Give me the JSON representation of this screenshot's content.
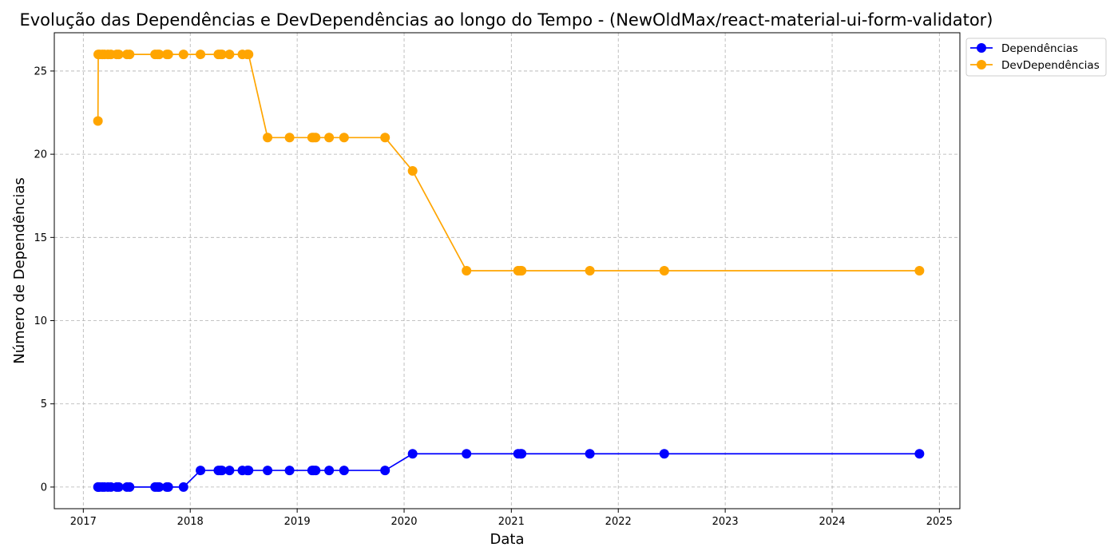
{
  "chart_data": {
    "type": "line",
    "title": "Evolução das Dependências e DevDependências ao longo do Tempo - (NewOldMax/react-material-ui-form-validator)",
    "xlabel": "Data",
    "ylabel": "Número de Dependências",
    "x_axis": {
      "scale": "date",
      "range": [
        "2016-09-24",
        "2025-03-12"
      ],
      "ticks": [
        "2017",
        "2018",
        "2019",
        "2020",
        "2021",
        "2022",
        "2023",
        "2024",
        "2025"
      ]
    },
    "y_axis": {
      "range": [
        -1.3,
        27.3
      ],
      "ticks": [
        "0",
        "5",
        "10",
        "15",
        "20",
        "25"
      ]
    },
    "grid": true,
    "grid_style": "dashed",
    "legend_position": "upper right outside",
    "x": [
      "2017-02-20",
      "2017-02-21",
      "2017-02-26",
      "2017-03-07",
      "2017-03-14",
      "2017-03-26",
      "2017-04-05",
      "2017-04-25",
      "2017-05-02",
      "2017-05-30",
      "2017-06-08",
      "2017-09-03",
      "2017-09-11",
      "2017-09-17",
      "2017-10-13",
      "2017-10-18",
      "2017-12-09",
      "2018-02-05",
      "2018-04-07",
      "2018-04-14",
      "2018-04-19",
      "2018-05-15",
      "2018-06-28",
      "2018-07-15",
      "2018-07-19",
      "2018-09-22",
      "2018-12-06",
      "2019-02-21",
      "2019-02-26",
      "2019-03-05",
      "2019-04-20",
      "2019-06-10",
      "2019-10-28",
      "2020-01-30",
      "2020-08-01",
      "2021-01-24",
      "2021-02-01",
      "2021-02-05",
      "2021-09-26",
      "2022-06-07",
      "2024-10-25"
    ],
    "series": [
      {
        "name": "Dependências",
        "color": "#0000ff",
        "values": [
          0,
          0,
          0,
          0,
          0,
          0,
          0,
          0,
          0,
          0,
          0,
          0,
          0,
          0,
          0,
          0,
          0,
          1,
          1,
          1,
          1,
          1,
          1,
          1,
          1,
          1,
          1,
          1,
          1,
          1,
          1,
          1,
          1,
          2,
          2,
          2,
          2,
          2,
          2,
          2,
          2
        ]
      },
      {
        "name": "DevDependências",
        "color": "#ffa500",
        "values": [
          22,
          26,
          26,
          26,
          26,
          26,
          26,
          26,
          26,
          26,
          26,
          26,
          26,
          26,
          26,
          26,
          26,
          26,
          26,
          26,
          26,
          26,
          26,
          26,
          26,
          21,
          21,
          21,
          21,
          21,
          21,
          21,
          21,
          19,
          13,
          13,
          13,
          13,
          13,
          13,
          13
        ]
      }
    ]
  }
}
